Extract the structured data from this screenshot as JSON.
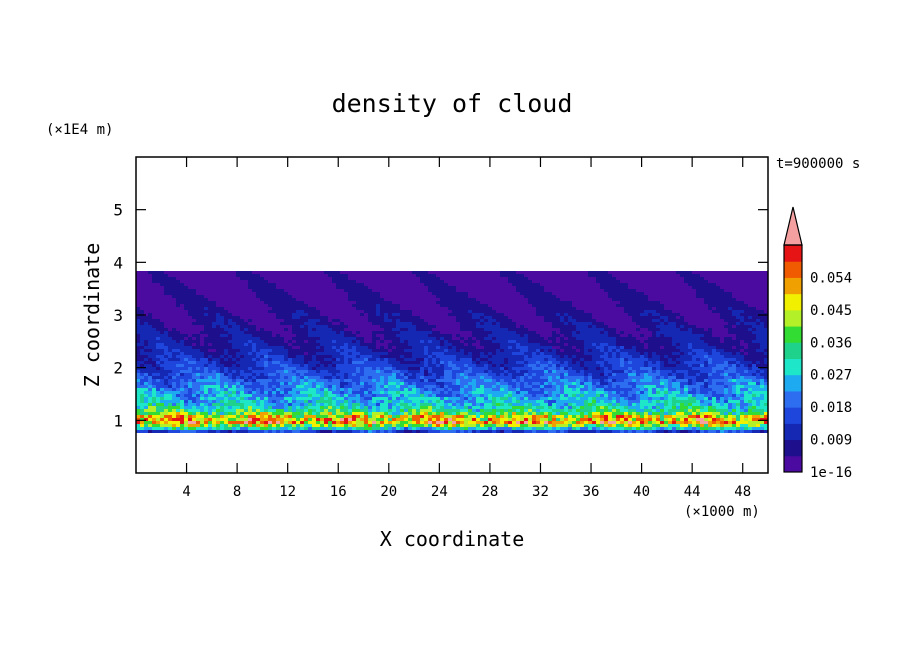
{
  "chart_data": {
    "type": "heatmap",
    "title": "density of cloud",
    "xlabel": "X coordinate",
    "ylabel": "Z coordinate",
    "x_unit": "(×1000 m)",
    "y_unit": "(×1E4 m)",
    "time_label": "t=900000 s",
    "xlim": [
      0,
      50
    ],
    "ylim": [
      0,
      6
    ],
    "x_ticks": [
      "4",
      "8",
      "12",
      "16",
      "20",
      "24",
      "28",
      "32",
      "36",
      "40",
      "44",
      "48"
    ],
    "x_tick_values": [
      4,
      8,
      12,
      16,
      20,
      24,
      28,
      32,
      36,
      40,
      44,
      48
    ],
    "y_ticks": [
      "1",
      "2",
      "3",
      "4",
      "5"
    ],
    "y_tick_values": [
      1,
      2,
      3,
      4,
      5
    ],
    "colorbar": {
      "labels": [
        "1e-16",
        "0.009",
        "0.018",
        "0.027",
        "0.036",
        "0.045",
        "0.054"
      ],
      "label_values": [
        0,
        0.009,
        0.018,
        0.027,
        0.036,
        0.045,
        0.054
      ],
      "levels": [
        0,
        0.0045,
        0.009,
        0.0135,
        0.018,
        0.0225,
        0.027,
        0.0315,
        0.036,
        0.0405,
        0.045,
        0.0495,
        0.054,
        0.0585
      ],
      "colors": [
        "#4b0aa0",
        "#1e0f8c",
        "#1428b4",
        "#1e46dc",
        "#2d6ef0",
        "#1eaaf0",
        "#1ee6c8",
        "#1ed28c",
        "#32dc32",
        "#b4f028",
        "#f0f000",
        "#f0a000",
        "#f05a00",
        "#e61414"
      ],
      "extend_color": "#f5a0a0"
    },
    "profile": {
      "z": [
        0.75,
        0.85,
        0.95,
        1.05,
        1.15,
        1.3,
        1.5,
        1.7,
        1.9,
        2.1,
        2.4,
        2.8,
        3.2,
        3.6,
        3.85
      ],
      "density": [
        0.006,
        0.03,
        0.052,
        0.05,
        0.035,
        0.028,
        0.024,
        0.02,
        0.016,
        0.013,
        0.009,
        0.006,
        0.004,
        0.002,
        0.001
      ]
    },
    "cloud_top_z": 3.9,
    "cloud_base_z": 0.72
  }
}
